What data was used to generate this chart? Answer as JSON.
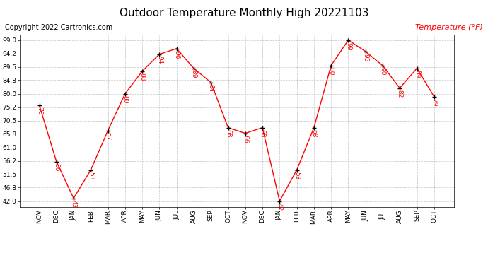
{
  "title": "Outdoor Temperature Monthly High 20221103",
  "copyright_text": "Copyright 2022 Cartronics.com",
  "legend_label": "Temperature (°F)",
  "months": [
    "NOV",
    "DEC",
    "JAN",
    "FEB",
    "MAR",
    "APR",
    "MAY",
    "JUN",
    "JUL",
    "AUG",
    "SEP",
    "OCT",
    "NOV",
    "DEC",
    "JAN",
    "FEB",
    "MAR",
    "APR",
    "MAY",
    "JUN",
    "JUL",
    "AUG",
    "SEP",
    "OCT"
  ],
  "values": [
    76,
    56,
    43,
    53,
    67,
    80,
    88,
    94,
    96,
    89,
    84,
    68,
    66,
    68,
    42,
    53,
    68,
    90,
    99,
    95,
    90,
    82,
    89,
    79
  ],
  "line_color": "red",
  "marker_color": "black",
  "label_color": "red",
  "title_color": "black",
  "copyright_color": "black",
  "legend_color": "red",
  "background_color": "white",
  "grid_color": "#aaaaaa",
  "ylim_min": 42.0,
  "ylim_max": 99.0,
  "yticks": [
    42.0,
    46.8,
    51.5,
    56.2,
    61.0,
    65.8,
    70.5,
    75.2,
    80.0,
    84.8,
    89.5,
    94.2,
    99.0
  ],
  "title_fontsize": 11,
  "copyright_fontsize": 7,
  "legend_fontsize": 8,
  "label_fontsize": 6.5,
  "tick_fontsize": 6.5
}
